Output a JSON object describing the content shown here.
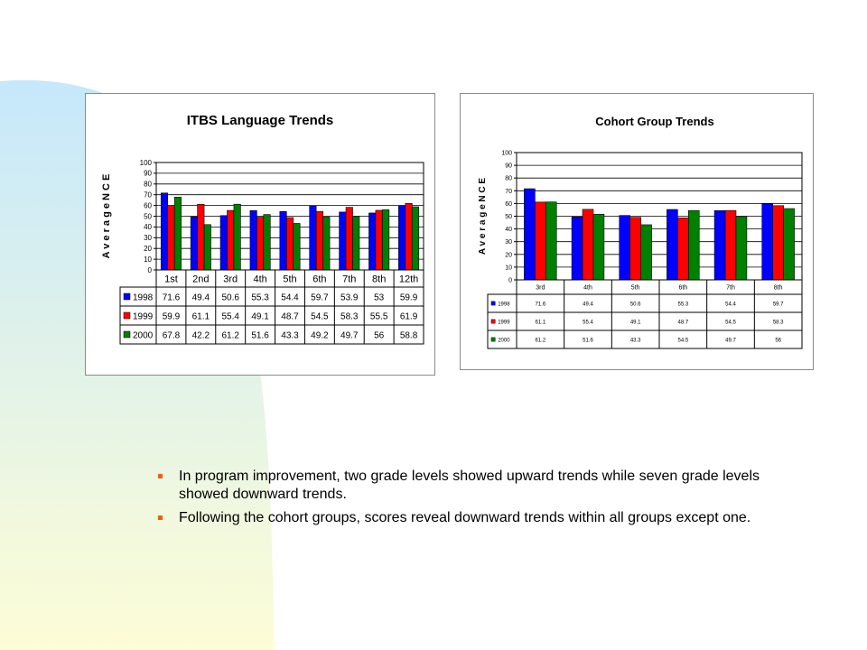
{
  "colors": {
    "series": [
      "#0000ff",
      "#ff0000",
      "#008000"
    ],
    "background_shape": [
      "#c6e8fb",
      "#fdfdd6"
    ],
    "bullet": "#e8631a"
  },
  "bullets": [
    "In program improvement, two grade levels showed upward trends while seven grade levels showed downward trends.",
    "Following the cohort groups, scores reveal downward trends within all groups except one."
  ],
  "chart_data": [
    {
      "type": "bar",
      "title": "ITBS Language Trends",
      "ylabel": "A v e r a g e   N C E",
      "xlabel": "",
      "ylim": [
        0,
        100
      ],
      "yticks": [
        0,
        10,
        20,
        30,
        40,
        50,
        60,
        70,
        80,
        90,
        100
      ],
      "grid": true,
      "legend": "data-table",
      "categories": [
        "1st",
        "2nd",
        "3rd",
        "4th",
        "5th",
        "6th",
        "7th",
        "8th",
        "12th"
      ],
      "series": [
        {
          "name": "1998",
          "values": [
            71.6,
            49.4,
            50.6,
            55.3,
            54.4,
            59.7,
            53.9,
            53,
            59.9
          ],
          "labels": [
            "71.6",
            "49.4",
            "50.6",
            "55.3",
            "54.4",
            "59.7",
            "53.9",
            "53",
            "59.9"
          ]
        },
        {
          "name": "1999",
          "values": [
            59.9,
            61.1,
            55.4,
            49.1,
            48.7,
            54.5,
            58.3,
            55.5,
            61.9
          ],
          "labels": [
            "59.9",
            "61.1",
            "55.4",
            "49.1",
            "48.7",
            "54.5",
            "58.3",
            "55.5",
            "61.9"
          ]
        },
        {
          "name": "2000",
          "values": [
            67.8,
            42.2,
            61.2,
            51.6,
            43.3,
            49.2,
            49.7,
            56,
            58.8
          ],
          "labels": [
            "67.8",
            "42.2",
            "61.2",
            "51.6",
            "43.3",
            "49.2",
            "49.7",
            "56",
            "58.8"
          ]
        }
      ]
    },
    {
      "type": "bar",
      "title": "Cohort Group Trends",
      "ylabel": "A v e r a g e   N C E",
      "xlabel": "",
      "ylim": [
        0,
        100
      ],
      "yticks": [
        0,
        10,
        20,
        30,
        40,
        50,
        60,
        70,
        80,
        90,
        100
      ],
      "grid": true,
      "legend": "data-table",
      "categories": [
        "3rd",
        "4th",
        "5th",
        "6th",
        "7th",
        "8th"
      ],
      "series": [
        {
          "name": "1998",
          "values": [
            71.6,
            49.4,
            50.6,
            55.3,
            54.4,
            59.7
          ],
          "labels": [
            "71.6",
            "49.4",
            "50.6",
            "55.3",
            "54.4",
            "59.7"
          ]
        },
        {
          "name": "1999",
          "values": [
            61.1,
            55.4,
            49.1,
            48.7,
            54.5,
            58.3
          ],
          "labels": [
            "61.1",
            "55.4",
            "49.1",
            "48.7",
            "54.5",
            "58.3"
          ]
        },
        {
          "name": "2000",
          "values": [
            61.2,
            51.6,
            43.3,
            54.5,
            49.7,
            56
          ],
          "labels": [
            "61.2",
            "51.6",
            "43.3",
            "54.5",
            "49.7",
            "56"
          ]
        }
      ]
    }
  ]
}
